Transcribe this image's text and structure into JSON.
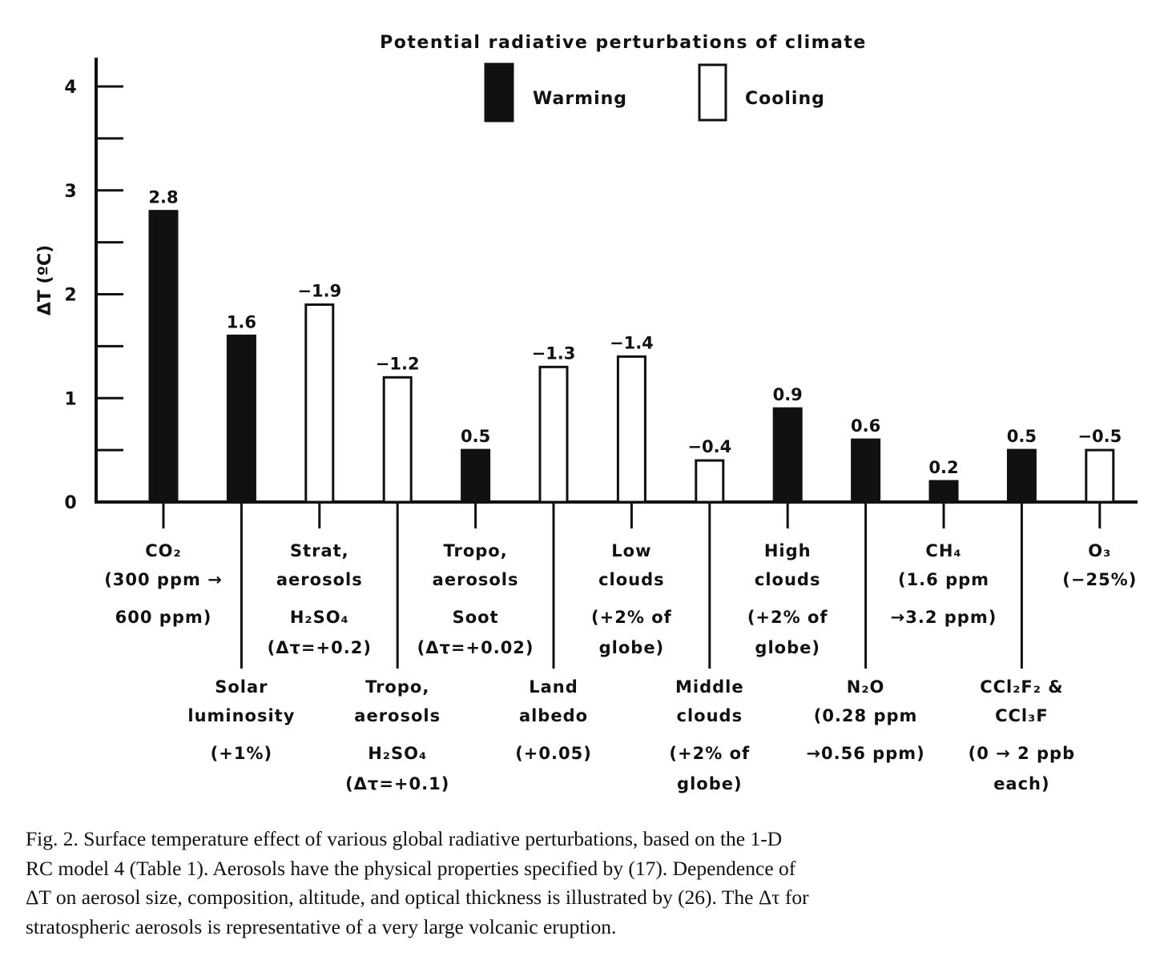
{
  "chart_data": {
    "type": "bar",
    "title": "Potential radiative perturbations of climate",
    "ylabel": "ΔT (ºC)",
    "xlabel": "",
    "ylim": [
      0,
      4
    ],
    "yticks": [
      "0",
      "1",
      "2",
      "3",
      "4"
    ],
    "grid": false,
    "legend": {
      "placement": "top",
      "entries": [
        {
          "name": "Warming",
          "color": "#111111",
          "fill": "solid"
        },
        {
          "name": "Cooling",
          "color": "#ffffff",
          "fill": "hollow"
        }
      ]
    },
    "bars": [
      {
        "category": "CO2",
        "label_lines": [
          "CO₂",
          "(300 ppm →",
          "600 ppm)"
        ],
        "magnitude": 2.8,
        "data_label": "2.8",
        "effect": "Warming",
        "row": "top"
      },
      {
        "category": "Solar luminosity",
        "label_lines": [
          "Solar",
          "luminosity",
          "(+1%)"
        ],
        "magnitude": 1.6,
        "data_label": "1.6",
        "effect": "Warming",
        "row": "bottom"
      },
      {
        "category": "Strat. aerosols H2SO4",
        "label_lines": [
          "Strat,",
          "aerosols",
          "H₂SO₄",
          "(Δτ=+0.2)"
        ],
        "magnitude": 1.9,
        "data_label": "−1.9",
        "effect": "Cooling",
        "row": "top"
      },
      {
        "category": "Tropo. aerosols H2SO4",
        "label_lines": [
          "Tropo,",
          "aerosols",
          "H₂SO₄",
          "(Δτ=+0.1)"
        ],
        "magnitude": 1.2,
        "data_label": "−1.2",
        "effect": "Cooling",
        "row": "bottom"
      },
      {
        "category": "Tropo. aerosols Soot",
        "label_lines": [
          "Tropo,",
          "aerosols",
          "Soot",
          "(Δτ=+0.02)"
        ],
        "magnitude": 0.5,
        "data_label": "0.5",
        "effect": "Warming",
        "row": "top"
      },
      {
        "category": "Land albedo",
        "label_lines": [
          "Land",
          "albedo",
          "(+0.05)"
        ],
        "magnitude": 1.3,
        "data_label": "−1.3",
        "effect": "Cooling",
        "row": "bottom"
      },
      {
        "category": "Low clouds",
        "label_lines": [
          "Low",
          "clouds",
          "(+2% of",
          "globe)"
        ],
        "magnitude": 1.4,
        "data_label": "−1.4",
        "effect": "Cooling",
        "row": "top"
      },
      {
        "category": "Middle clouds",
        "label_lines": [
          "Middle",
          "clouds",
          "(+2% of",
          "globe)"
        ],
        "magnitude": 0.4,
        "data_label": "−0.4",
        "effect": "Cooling",
        "row": "bottom"
      },
      {
        "category": "High clouds",
        "label_lines": [
          "High",
          "clouds",
          "(+2% of",
          "globe)"
        ],
        "magnitude": 0.9,
        "data_label": "0.9",
        "effect": "Warming",
        "row": "top"
      },
      {
        "category": "N2O",
        "label_lines": [
          "N₂O",
          "(0.28 ppm",
          "→0.56 ppm)"
        ],
        "magnitude": 0.6,
        "data_label": "0.6",
        "effect": "Warming",
        "row": "bottom"
      },
      {
        "category": "CH4",
        "label_lines": [
          "CH₄",
          "(1.6 ppm",
          "→3.2 ppm)"
        ],
        "magnitude": 0.2,
        "data_label": "0.2",
        "effect": "Warming",
        "row": "top"
      },
      {
        "category": "CCl2F2 & CCl3F",
        "label_lines": [
          "CCl₂F₂ &",
          "CCl₃F",
          "(0 → 2 ppb",
          "each)"
        ],
        "magnitude": 0.5,
        "data_label": "0.5",
        "effect": "Warming",
        "row": "bottom"
      },
      {
        "category": "O3",
        "label_lines": [
          "O₃",
          "(−25%)"
        ],
        "magnitude": 0.5,
        "data_label": "−0.5",
        "effect": "Cooling",
        "row": "top"
      }
    ]
  },
  "caption": {
    "lines": [
      "Fig. 2. Surface temperature effect of various global radiative perturbations, based on the 1-D",
      "RC model 4 (Table 1). Aerosols have the physical properties specified by (17). Dependence of",
      "ΔT on aerosol size, composition, altitude, and optical thickness is illustrated by (26). The Δτ for",
      "stratospheric aerosols is representative of a very large volcanic eruption."
    ]
  }
}
